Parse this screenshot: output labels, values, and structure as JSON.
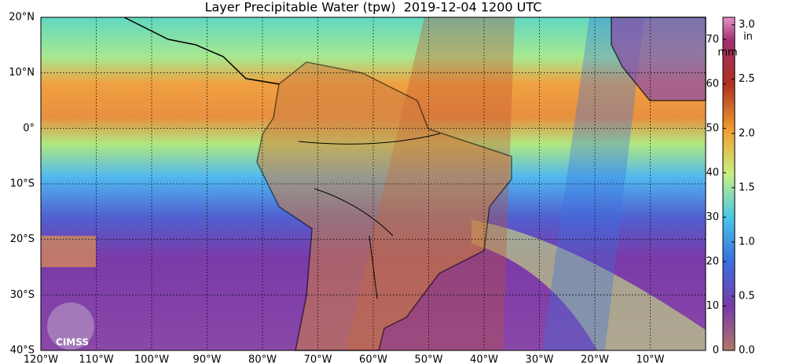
{
  "title": "Layer Precipitable Water (tpw)  2019-12-04 1200 UTC",
  "map": {
    "xlim": [
      -120,
      0
    ],
    "ylim": [
      -40,
      20
    ],
    "xticks": [
      {
        "value": -120,
        "label": "120°W"
      },
      {
        "value": -110,
        "label": "110°W"
      },
      {
        "value": -100,
        "label": "100°W"
      },
      {
        "value": -90,
        "label": "90°W"
      },
      {
        "value": -80,
        "label": "80°W"
      },
      {
        "value": -70,
        "label": "70°W"
      },
      {
        "value": -60,
        "label": "60°W"
      },
      {
        "value": -50,
        "label": "50°W"
      },
      {
        "value": -40,
        "label": "40°W"
      },
      {
        "value": -30,
        "label": "30°W"
      },
      {
        "value": -20,
        "label": "20°W"
      },
      {
        "value": -10,
        "label": "10°W"
      }
    ],
    "yticks": [
      {
        "value": 20,
        "label": "20°N"
      },
      {
        "value": 10,
        "label": "10°N"
      },
      {
        "value": 0,
        "label": "0°"
      },
      {
        "value": -10,
        "label": "10°S"
      },
      {
        "value": -20,
        "label": "20°S"
      },
      {
        "value": -30,
        "label": "30°S"
      },
      {
        "value": -40,
        "label": "40°S"
      }
    ]
  },
  "colorbar": {
    "unit_mm": "mm",
    "unit_in": "in",
    "lim_mm": [
      0,
      75
    ],
    "ticks_mm": [
      0,
      10,
      20,
      30,
      40,
      50,
      60,
      70
    ],
    "lim_in": [
      0,
      3.07
    ],
    "ticks_in": [
      {
        "value": 0,
        "label": "0.0"
      },
      {
        "value": 0.5,
        "label": "0.5"
      },
      {
        "value": 1,
        "label": "1.0"
      },
      {
        "value": 1.5,
        "label": "1.5"
      },
      {
        "value": 2,
        "label": "2.0"
      },
      {
        "value": 2.5,
        "label": "2.5"
      },
      {
        "value": 3,
        "label": "3.0"
      }
    ]
  },
  "logo": "CIMSS"
}
